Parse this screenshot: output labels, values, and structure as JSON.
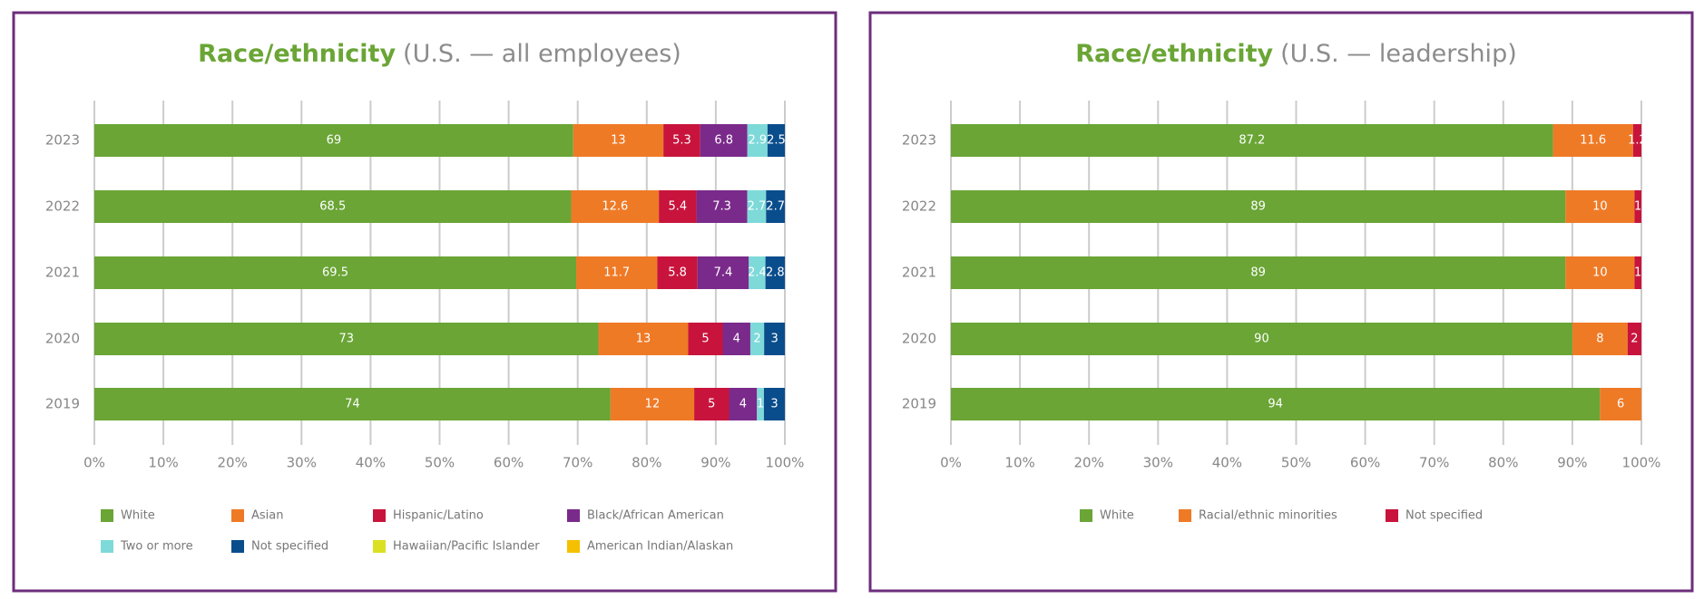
{
  "chart_data": [
    {
      "type": "stack100",
      "title": "Race/ethnicity",
      "subtitle": "(U.S. — all employees)",
      "categories": [
        "2023",
        "2022",
        "2021",
        "2020",
        "2019"
      ],
      "series": [
        {
          "name": "White",
          "color": "#6aa535",
          "values": [
            69,
            68.5,
            69.5,
            73,
            74
          ]
        },
        {
          "name": "Asian",
          "color": "#ef7a26",
          "values": [
            13,
            12.6,
            11.7,
            13,
            12
          ]
        },
        {
          "name": "Hispanic/Latino",
          "color": "#c8143c",
          "values": [
            5.3,
            5.4,
            5.8,
            5,
            5
          ]
        },
        {
          "name": "Black/African American",
          "color": "#7a2a8a",
          "values": [
            6.8,
            7.3,
            7.4,
            4,
            4
          ]
        },
        {
          "name": "Two or more",
          "color": "#7ed9d9",
          "values": [
            2.9,
            2.7,
            2.4,
            2,
            1
          ]
        },
        {
          "name": "Not specified",
          "color": "#0a4d8c",
          "values": [
            2.5,
            2.7,
            2.8,
            3,
            3
          ]
        },
        {
          "name": "Hawaiian/Pacific Islander",
          "color": "#dbe022",
          "values": [
            null,
            null,
            null,
            null,
            null
          ]
        },
        {
          "name": "American Indian/Alaskan",
          "color": "#f5c000",
          "values": [
            null,
            null,
            null,
            null,
            null
          ]
        }
      ],
      "xlim": [
        0,
        100
      ],
      "xticks": [
        {
          "value": 0,
          "label": "0%"
        },
        {
          "value": 10,
          "label": "10%"
        },
        {
          "value": 20,
          "label": "20%"
        },
        {
          "value": 30,
          "label": "30%"
        },
        {
          "value": 40,
          "label": "40%"
        },
        {
          "value": 50,
          "label": "50%"
        },
        {
          "value": 60,
          "label": "60%"
        },
        {
          "value": 70,
          "label": "70%"
        },
        {
          "value": 80,
          "label": "80%"
        },
        {
          "value": 90,
          "label": "90%"
        },
        {
          "value": 100,
          "label": "100%"
        }
      ],
      "grid": true
    },
    {
      "type": "stack100",
      "title": "Race/ethnicity",
      "subtitle": "(U.S. — leadership)",
      "categories": [
        "2023",
        "2022",
        "2021",
        "2020",
        "2019"
      ],
      "series": [
        {
          "name": "White",
          "color": "#6aa535",
          "values": [
            87.2,
            89,
            89,
            90,
            94
          ]
        },
        {
          "name": "Racial/ethnic minorities",
          "color": "#ef7a26",
          "values": [
            11.6,
            10,
            10,
            8,
            6
          ]
        },
        {
          "name": "Not specified",
          "color": "#c8143c",
          "values": [
            1.2,
            1,
            1,
            2,
            null
          ]
        }
      ],
      "xlim": [
        0,
        100
      ],
      "xticks": [
        {
          "value": 0,
          "label": "0%"
        },
        {
          "value": 10,
          "label": "10%"
        },
        {
          "value": 20,
          "label": "20%"
        },
        {
          "value": 30,
          "label": "30%"
        },
        {
          "value": 40,
          "label": "40%"
        },
        {
          "value": 50,
          "label": "50%"
        },
        {
          "value": 60,
          "label": "60%"
        },
        {
          "value": 70,
          "label": "70%"
        },
        {
          "value": 80,
          "label": "80%"
        },
        {
          "value": 90,
          "label": "90%"
        },
        {
          "value": 100,
          "label": "100%"
        }
      ],
      "grid": true
    }
  ]
}
